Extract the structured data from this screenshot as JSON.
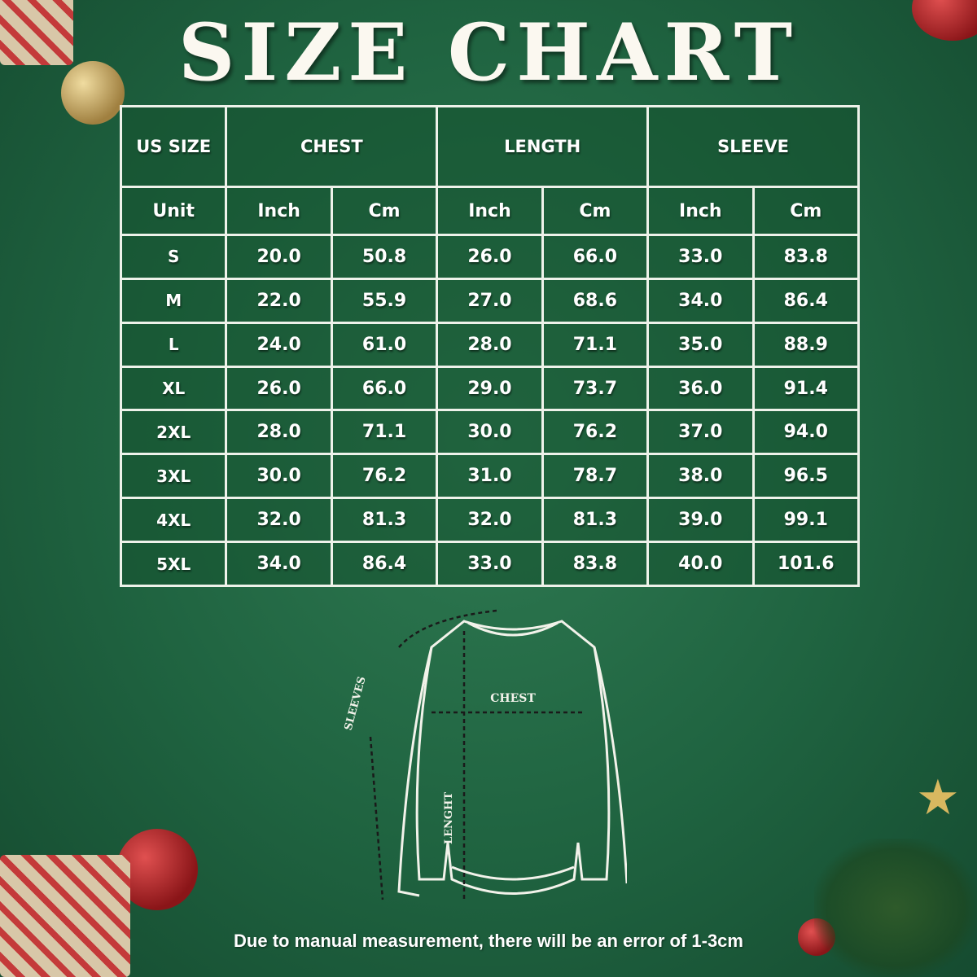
{
  "title": "SIZE CHART",
  "table": {
    "group_headers": [
      "US SIZE",
      "CHEST",
      "LENGTH",
      "SLEEVE"
    ],
    "unit_label": "Unit",
    "units": [
      "Inch",
      "Cm",
      "Inch",
      "Cm",
      "Inch",
      "Cm"
    ],
    "rows": [
      {
        "size": "S",
        "values": [
          "20.0",
          "50.8",
          "26.0",
          "66.0",
          "33.0",
          "83.8"
        ]
      },
      {
        "size": "M",
        "values": [
          "22.0",
          "55.9",
          "27.0",
          "68.6",
          "34.0",
          "86.4"
        ]
      },
      {
        "size": "L",
        "values": [
          "24.0",
          "61.0",
          "28.0",
          "71.1",
          "35.0",
          "88.9"
        ]
      },
      {
        "size": "XL",
        "values": [
          "26.0",
          "66.0",
          "29.0",
          "73.7",
          "36.0",
          "91.4"
        ]
      },
      {
        "size": "2XL",
        "values": [
          "28.0",
          "71.1",
          "30.0",
          "76.2",
          "37.0",
          "94.0"
        ]
      },
      {
        "size": "3XL",
        "values": [
          "30.0",
          "76.2",
          "31.0",
          "78.7",
          "38.0",
          "96.5"
        ]
      },
      {
        "size": "4XL",
        "values": [
          "32.0",
          "81.3",
          "32.0",
          "81.3",
          "39.0",
          "99.1"
        ]
      },
      {
        "size": "5XL",
        "values": [
          "34.0",
          "86.4",
          "33.0",
          "83.8",
          "40.0",
          "101.6"
        ]
      }
    ]
  },
  "diagram": {
    "sleeves_label": "SLEEVES",
    "chest_label": "CHEST",
    "length_label": "LENGHT"
  },
  "footer": "Due to manual measurement, there will be an error of 1-3cm",
  "colors": {
    "background": "#1f6340",
    "lines": "#eef2ea",
    "ornament": "#b3262a",
    "gold": "#c9a24a"
  }
}
